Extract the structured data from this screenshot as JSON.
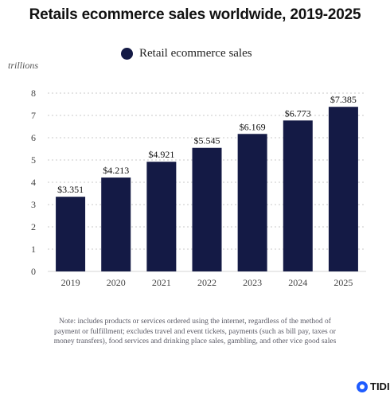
{
  "chart_data": {
    "type": "bar",
    "title": "Retails ecommerce sales worldwide, 2019-2025",
    "unit_label": "trillions",
    "xlabel": "",
    "ylabel": "",
    "categories": [
      "2019",
      "2020",
      "2021",
      "2022",
      "2023",
      "2024",
      "2025"
    ],
    "series": [
      {
        "name": "Retail ecommerce sales",
        "values": [
          3.351,
          4.213,
          4.921,
          5.545,
          6.169,
          6.773,
          7.385
        ],
        "labels": [
          "$3.351",
          "$4.213",
          "$4.921",
          "$5.545",
          "$6.169",
          "$6.773",
          "$7.385"
        ]
      }
    ],
    "ylim": [
      0,
      8
    ],
    "yticks": [
      "0",
      "1",
      "2",
      "3",
      "4",
      "5",
      "6",
      "7",
      "8"
    ],
    "grid": true,
    "legend_position": "top-center",
    "bar_color": "#141a45"
  },
  "note": "Note: includes products or services ordered using the internet, regardless of the method of payment or fulfillment; excludes travel and event tickets, payments (such as bill pay, taxes or money transfers), food services and drinking place sales, gambling, and other vice good sales",
  "logo_text": "TIDI"
}
